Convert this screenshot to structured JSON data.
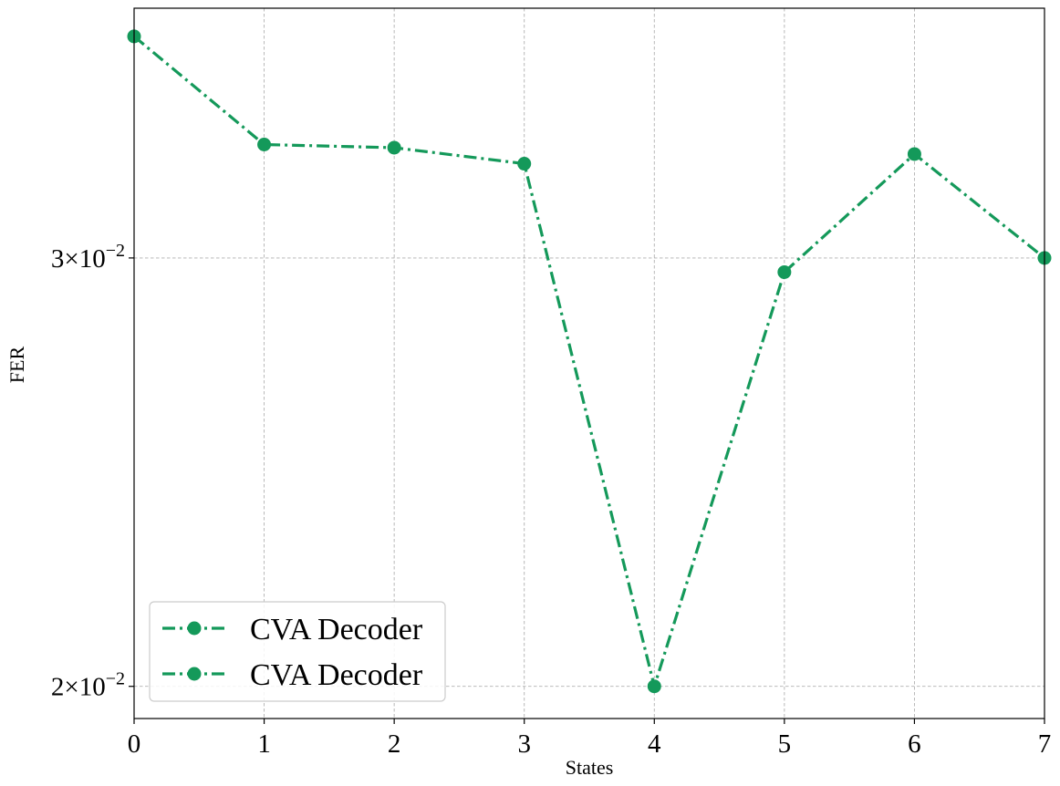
{
  "chart_data": {
    "type": "line",
    "xlabel": "States",
    "ylabel": "FER",
    "x": [
      0,
      1,
      2,
      3,
      4,
      5,
      6,
      7
    ],
    "series": [
      {
        "name": "CVA Decoder",
        "color": "#14995a",
        "line_style": "dash-dot",
        "marker": "circle",
        "values": [
          0.037,
          0.0334,
          0.0333,
          0.0328,
          0.02,
          0.0296,
          0.0331,
          0.03
        ]
      }
    ],
    "legend_entries": [
      "CVA Decoder",
      "CVA Decoder"
    ],
    "legend_position": "lower-left",
    "xlim": [
      0,
      7
    ],
    "ylim": [
      0.0194,
      0.038
    ],
    "yscale": "log",
    "x_ticks": [
      "0",
      "1",
      "2",
      "3",
      "4",
      "5",
      "6",
      "7"
    ],
    "y_ticks": [
      {
        "value": 0.03,
        "mantissa": "3",
        "exponent": "−2"
      },
      {
        "value": 0.02,
        "mantissa": "2",
        "exponent": "−2"
      }
    ],
    "grid": true
  }
}
